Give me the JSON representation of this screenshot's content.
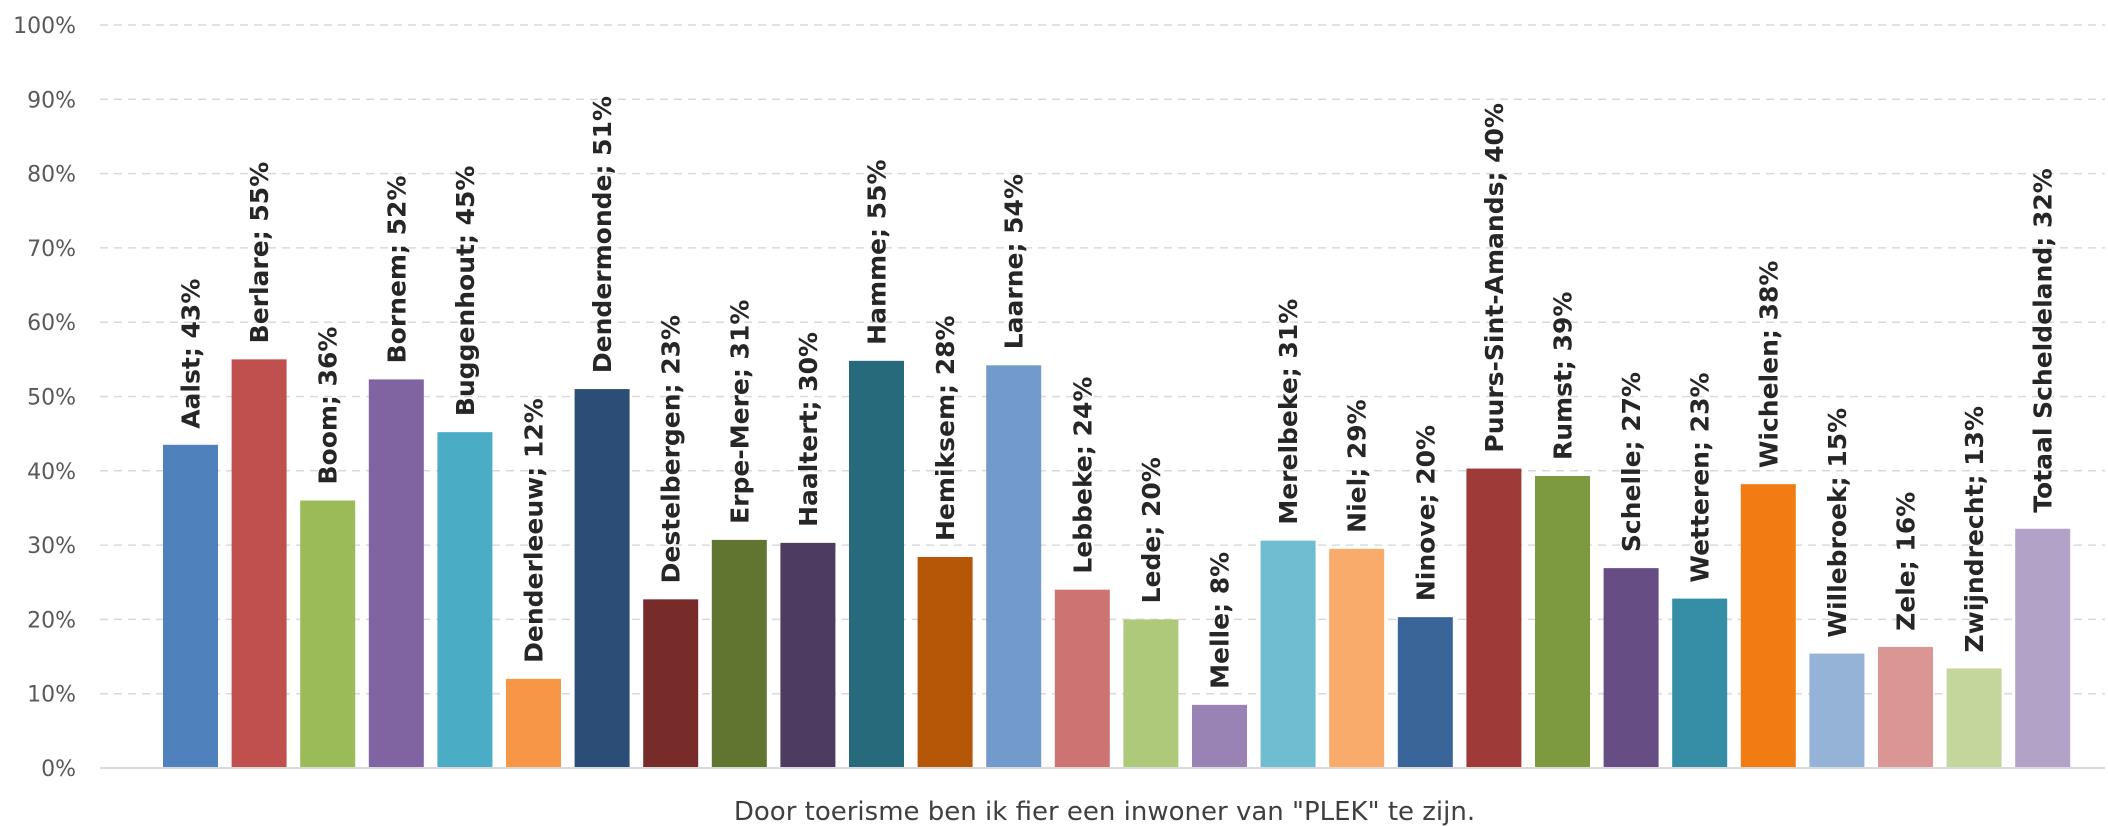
{
  "chart_data": {
    "type": "bar",
    "categories": [
      "Aalst",
      "Berlare",
      "Boom",
      "Bornem",
      "Buggenhout",
      "Denderleeuw",
      "Dendermonde",
      "Destelbergen",
      "Erpe-Mere",
      "Haaltert",
      "Hamme",
      "Hemiksem",
      "Laarne",
      "Lebbeke",
      "Lede",
      "Melle",
      "Merelbeke",
      "Niel",
      "Ninove",
      "Puurs-Sint-Amands",
      "Rumst",
      "Schelle",
      "Wetteren",
      "Wichelen",
      "Willebroek",
      "Zele",
      "Zwijndrecht",
      "Totaal Scheldeland"
    ],
    "values": [
      43.5,
      55,
      36,
      52.3,
      45.2,
      12,
      51,
      22.7,
      30.7,
      30.3,
      54.8,
      28.4,
      54.2,
      24,
      20,
      8.5,
      30.6,
      29.5,
      20.3,
      40.3,
      39.3,
      26.9,
      22.8,
      38.2,
      15.4,
      16.3,
      13.4,
      32.2
    ],
    "data_labels": [
      "Aalst; 43%",
      "Berlare; 55%",
      "Boom; 36%",
      "Bornem; 52%",
      "Buggenhout; 45%",
      "Denderleeuw; 12%",
      "Dendermonde; 51%",
      "Destelbergen; 23%",
      "Erpe-Mere; 31%",
      "Haaltert; 30%",
      "Hamme; 55%",
      "Hemiksem; 28%",
      "Laarne; 54%",
      "Lebbeke; 24%",
      "Lede; 20%",
      "Melle; 8%",
      "Merelbeke; 31%",
      "Niel; 29%",
      "Ninove; 20%",
      "Puurs-Sint-Amands; 40%",
      "Rumst; 39%",
      "Schelle; 27%",
      "Wetteren; 23%",
      "Wichelen; 38%",
      "Willebroek; 15%",
      "Zele; 16%",
      "Zwijndrecht; 13%",
      "Totaal Scheldeland; 32%"
    ],
    "colors": [
      "#4f81bd",
      "#c0504d",
      "#9bbb59",
      "#8064a2",
      "#4bacc6",
      "#f79646",
      "#2c4d75",
      "#772c2a",
      "#5f7530",
      "#4d3b62",
      "#276a7c",
      "#b65708",
      "#729aca",
      "#cd7371",
      "#afc97a",
      "#9983b5",
      "#6fbdd1",
      "#f9ab6b",
      "#3a6599",
      "#9e3a38",
      "#7d9a3e",
      "#664e84",
      "#358ea6",
      "#f07c13",
      "#95b3d7",
      "#d99694",
      "#c3d69b",
      "#b2a2c7"
    ],
    "ylim": [
      0,
      100
    ],
    "yticks": [
      "0%",
      "10%",
      "20%",
      "30%",
      "40%",
      "50%",
      "60%",
      "70%",
      "80%",
      "90%",
      "100%"
    ],
    "xlabel": "Door toerisme ben ik fier een inwoner van \"PLEK\" te zijn.",
    "ylabel": "",
    "grid": true,
    "legend": "none"
  }
}
